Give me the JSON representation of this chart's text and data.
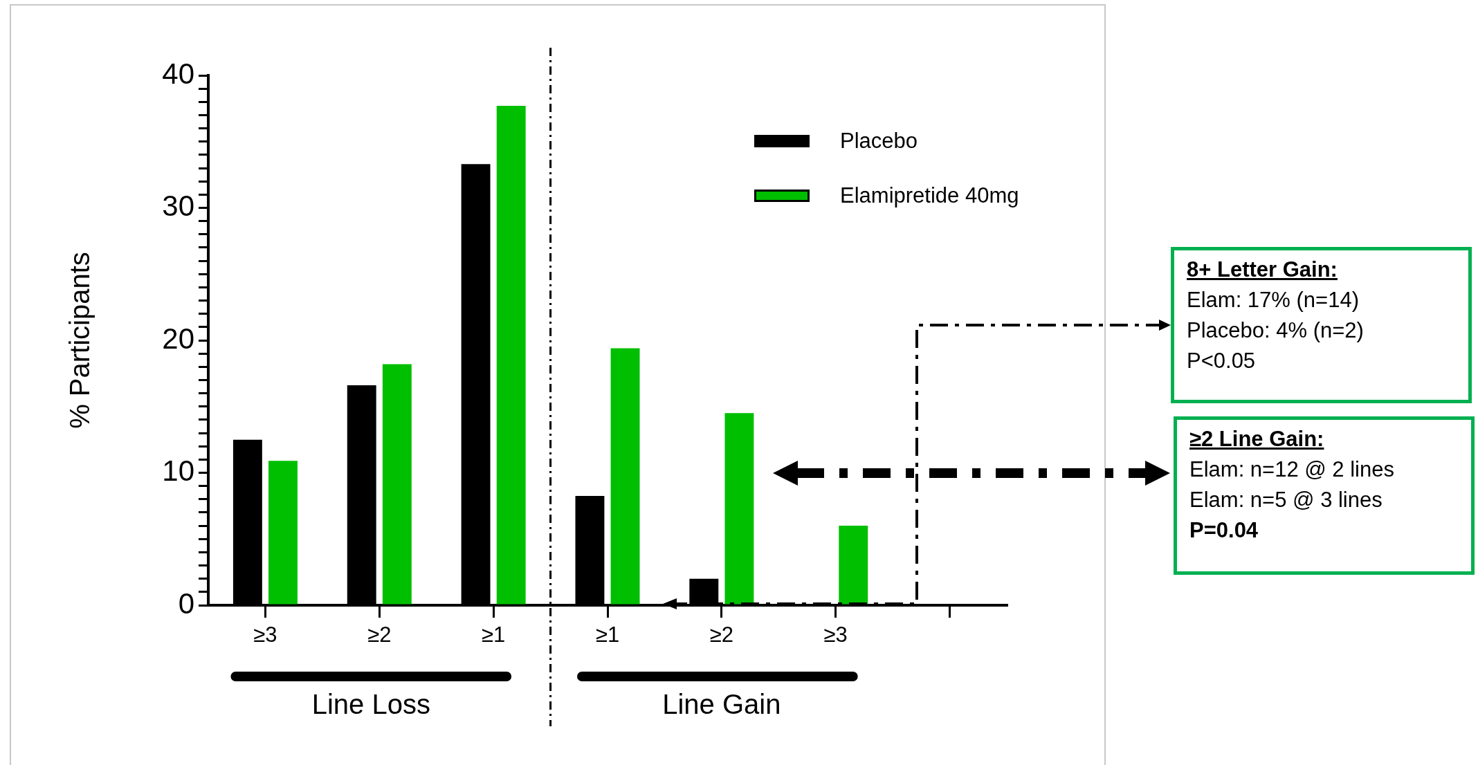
{
  "chart_data": {
    "type": "bar",
    "ylabel": "% Participants",
    "categories": [
      "≥3",
      "≥2",
      "≥1",
      "≥1",
      "≥2",
      "≥3",
      null
    ],
    "series": [
      {
        "name": "Placebo",
        "color": "#000000",
        "values": [
          12.5,
          16.6,
          33.3,
          8.25,
          2.0,
          0,
          null
        ]
      },
      {
        "name": "Elamipretide 40mg",
        "color": "#00bf00",
        "values": [
          10.9,
          18.2,
          37.7,
          19.4,
          14.5,
          6.0,
          null
        ]
      }
    ],
    "ylim": [
      0,
      40
    ],
    "yticks": [
      0,
      {
        "value": 1,
        "label": null
      },
      {
        "value": 2,
        "label": null
      },
      {
        "value": 3,
        "label": null
      },
      {
        "value": 4,
        "label": null
      },
      {
        "value": 5,
        "label": null
      },
      {
        "value": 6,
        "label": null
      },
      {
        "value": 7,
        "label": null
      },
      {
        "value": 8,
        "label": null
      },
      {
        "value": 9,
        "label": null
      },
      10,
      {
        "value": 11,
        "label": null
      },
      {
        "value": 12,
        "label": null
      },
      {
        "value": 13,
        "label": null
      },
      {
        "value": 14,
        "label": null
      },
      {
        "value": 15,
        "label": null
      },
      {
        "value": 16,
        "label": null
      },
      {
        "value": 17,
        "label": null
      },
      {
        "value": 18,
        "label": null
      },
      {
        "value": 19,
        "label": null
      },
      20,
      {
        "value": 21,
        "label": null
      },
      {
        "value": 22,
        "label": null
      },
      {
        "value": 23,
        "label": null
      },
      {
        "value": 24,
        "label": null
      },
      {
        "value": 25,
        "label": null
      },
      {
        "value": 26,
        "label": null
      },
      {
        "value": 27,
        "label": null
      },
      {
        "value": 28,
        "label": null
      },
      {
        "value": 29,
        "label": null
      },
      30,
      {
        "value": 31,
        "label": null
      },
      {
        "value": 32,
        "label": null
      },
      {
        "value": 33,
        "label": null
      },
      {
        "value": 34,
        "label": null
      },
      {
        "value": 35,
        "label": null
      },
      {
        "value": 36,
        "label": null
      },
      {
        "value": 37,
        "label": null
      },
      {
        "value": 38,
        "label": null
      },
      {
        "value": 39,
        "label": null
      },
      40
    ],
    "legend": "top right",
    "grid": false,
    "annotations": [
      "8+ Letter Gain:",
      "Elam: 17% (n=14)",
      "Placebo: 4% (n=2)",
      "P<0.05",
      "≥2 Line Gain:",
      "Elam: n=12 @ 2 lines",
      "Elam: n=5 @ 3 lines",
      "P=0.04",
      "Line Loss",
      "Line Gain"
    ]
  }
}
